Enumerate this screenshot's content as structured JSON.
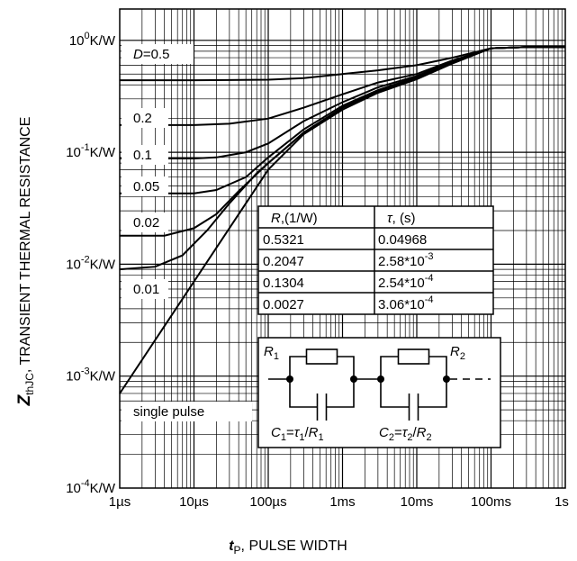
{
  "chart_data": {
    "type": "line",
    "x_scale": "log",
    "y_scale": "log",
    "grid": true,
    "xlabel": {
      "main": "t",
      "sub": "P",
      "rest": ", PULSE WIDTH"
    },
    "ylabel": {
      "main": "Z",
      "sub": "thJC",
      "rest": ", TRANSIENT THERMAL RESISTANCE"
    },
    "xlim_s": [
      1e-06,
      1
    ],
    "ylim_KW": [
      0.0001,
      2
    ],
    "x_ticks": [
      {
        "value": 1e-06,
        "label": "1µs"
      },
      {
        "value": 1e-05,
        "label": "10µs"
      },
      {
        "value": 0.0001,
        "label": "100µs"
      },
      {
        "value": 0.001,
        "label": "1ms"
      },
      {
        "value": 0.01,
        "label": "10ms"
      },
      {
        "value": 0.1,
        "label": "100ms"
      },
      {
        "value": 1,
        "label": "1s"
      }
    ],
    "y_ticks": [
      {
        "value": 1,
        "base": "10",
        "exp": "0",
        "unit": "K/W"
      },
      {
        "value": 0.1,
        "base": "10",
        "exp": "-1",
        "unit": "K/W"
      },
      {
        "value": 0.01,
        "base": "10",
        "exp": "-2",
        "unit": "K/W"
      },
      {
        "value": 0.001,
        "base": "10",
        "exp": "-3",
        "unit": "K/W"
      },
      {
        "value": 0.0001,
        "base": "10",
        "exp": "-4",
        "unit": "K/W"
      }
    ],
    "series": [
      {
        "name": "D=0.5",
        "label_prefix": "D",
        "label_value": "=0.5",
        "label_anchor": 2.5e-06,
        "x": [
          1e-06,
          1e-05,
          0.0001,
          0.0003,
          0.001,
          0.003,
          0.01,
          0.03,
          0.1,
          0.3,
          1
        ],
        "y": [
          0.44,
          0.44,
          0.445,
          0.46,
          0.5,
          0.54,
          0.6,
          0.7,
          0.85,
          0.87,
          0.87
        ]
      },
      {
        "name": "0.2",
        "label_anchor": 2.5e-06,
        "x": [
          1e-06,
          1e-05,
          3e-05,
          0.0001,
          0.0003,
          0.001,
          0.003,
          0.01,
          0.03,
          0.1,
          0.3,
          1
        ],
        "y": [
          0.175,
          0.175,
          0.18,
          0.2,
          0.25,
          0.33,
          0.42,
          0.5,
          0.66,
          0.85,
          0.87,
          0.87
        ]
      },
      {
        "name": "0.1",
        "label_anchor": 2.5e-06,
        "x": [
          1e-06,
          1e-05,
          2e-05,
          5e-05,
          0.0001,
          0.0003,
          0.001,
          0.003,
          0.01,
          0.03,
          0.1,
          0.3,
          1
        ],
        "y": [
          0.088,
          0.088,
          0.09,
          0.1,
          0.12,
          0.19,
          0.28,
          0.38,
          0.48,
          0.65,
          0.85,
          0.87,
          0.87
        ]
      },
      {
        "name": "0.05",
        "label_anchor": 2.5e-06,
        "x": [
          1e-06,
          1e-05,
          2e-05,
          5e-05,
          0.0001,
          0.0003,
          0.001,
          0.003,
          0.01,
          0.03,
          0.1,
          0.3,
          1
        ],
        "y": [
          0.043,
          0.043,
          0.046,
          0.06,
          0.09,
          0.16,
          0.26,
          0.36,
          0.47,
          0.64,
          0.85,
          0.87,
          0.87
        ]
      },
      {
        "name": "0.02",
        "label_anchor": 2.5e-06,
        "x": [
          1e-06,
          4e-06,
          1e-05,
          2e-05,
          4e-05,
          0.0001,
          0.0003,
          0.001,
          0.003,
          0.01,
          0.03,
          0.1,
          0.3,
          1
        ],
        "y": [
          0.018,
          0.018,
          0.021,
          0.028,
          0.045,
          0.08,
          0.15,
          0.25,
          0.35,
          0.46,
          0.63,
          0.85,
          0.87,
          0.87
        ]
      },
      {
        "name": "0.01",
        "label_anchor": 2.5e-06,
        "x": [
          1e-06,
          3e-06,
          7e-06,
          1.5e-05,
          3e-05,
          7e-05,
          0.0001,
          0.0003,
          0.001,
          0.003,
          0.01,
          0.03,
          0.1,
          0.3,
          1
        ],
        "y": [
          0.009,
          0.0095,
          0.012,
          0.02,
          0.035,
          0.065,
          0.08,
          0.15,
          0.25,
          0.35,
          0.46,
          0.63,
          0.85,
          0.87,
          0.87
        ]
      },
      {
        "name": "single pulse",
        "label_anchor": 2.5e-06,
        "x": [
          1e-06,
          1e-05,
          0.0001,
          0.0003,
          0.001,
          0.003,
          0.01,
          0.03,
          0.1,
          0.3,
          1
        ],
        "y": [
          0.0007,
          0.007,
          0.07,
          0.145,
          0.24,
          0.34,
          0.45,
          0.62,
          0.85,
          0.87,
          0.87
        ]
      }
    ],
    "annotations": {
      "table": {
        "headers": [
          {
            "symbol": "R",
            "unit": ",(1/W)"
          },
          {
            "symbol": "τ",
            "unit": ", (s)"
          }
        ],
        "rows": [
          {
            "r": "0.5321",
            "tau_base": "0.04968",
            "tau_exp": ""
          },
          {
            "r": "0.2047",
            "tau_base": "2.58*10",
            "tau_exp": "-3"
          },
          {
            "r": "0.1304",
            "tau_base": "2.54*10",
            "tau_exp": "-4"
          },
          {
            "r": "0.0027",
            "tau_base": "3.06*10",
            "tau_exp": "-4"
          }
        ]
      },
      "circuit": {
        "r1": {
          "main": "R",
          "sub": "1"
        },
        "r2": {
          "main": "R",
          "sub": "2"
        },
        "c1": {
          "c": "C",
          "cs": "1",
          "eq": "=",
          "tau": "τ",
          "ts": "1",
          "div": "/",
          "r": "R",
          "rs": "1"
        },
        "c2": {
          "c": "C",
          "cs": "2",
          "eq": "=",
          "tau": "τ",
          "ts": "2",
          "div": "/",
          "r": "R",
          "rs": "2"
        }
      }
    }
  }
}
